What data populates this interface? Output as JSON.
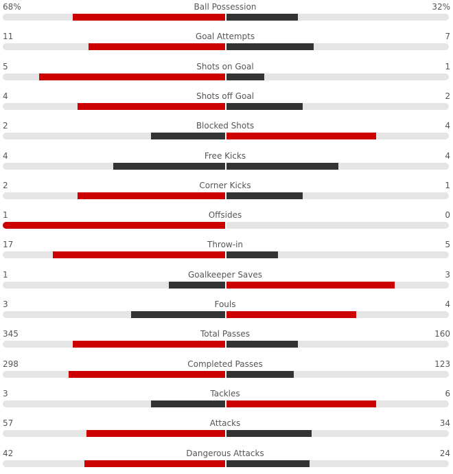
{
  "colors": {
    "leader": "#cc0000",
    "trailer": "#333333",
    "track": "#e5e5e5"
  },
  "stats": [
    {
      "label": "Ball Possession",
      "home": "68%",
      "away": "32%",
      "home_share": 0.68,
      "away_share": 0.32
    },
    {
      "label": "Goal Attempts",
      "home": "11",
      "away": "7",
      "home_share": 0.61,
      "away_share": 0.39
    },
    {
      "label": "Shots on Goal",
      "home": "5",
      "away": "1",
      "home_share": 0.83,
      "away_share": 0.17
    },
    {
      "label": "Shots off Goal",
      "home": "4",
      "away": "2",
      "home_share": 0.66,
      "away_share": 0.34
    },
    {
      "label": "Blocked Shots",
      "home": "2",
      "away": "4",
      "home_share": 0.33,
      "away_share": 0.67
    },
    {
      "label": "Free Kicks",
      "home": "4",
      "away": "4",
      "home_share": 0.5,
      "away_share": 0.5
    },
    {
      "label": "Corner Kicks",
      "home": "2",
      "away": "1",
      "home_share": 0.66,
      "away_share": 0.34
    },
    {
      "label": "Offsides",
      "home": "1",
      "away": "0",
      "home_share": 1.0,
      "away_share": 0.0
    },
    {
      "label": "Throw-in",
      "home": "17",
      "away": "5",
      "home_share": 0.77,
      "away_share": 0.23
    },
    {
      "label": "Goalkeeper Saves",
      "home": "1",
      "away": "3",
      "home_share": 0.25,
      "away_share": 0.75
    },
    {
      "label": "Fouls",
      "home": "3",
      "away": "4",
      "home_share": 0.42,
      "away_share": 0.58
    },
    {
      "label": "Total Passes",
      "home": "345",
      "away": "160",
      "home_share": 0.68,
      "away_share": 0.32
    },
    {
      "label": "Completed Passes",
      "home": "298",
      "away": "123",
      "home_share": 0.7,
      "away_share": 0.3
    },
    {
      "label": "Tackles",
      "home": "3",
      "away": "6",
      "home_share": 0.33,
      "away_share": 0.67
    },
    {
      "label": "Attacks",
      "home": "57",
      "away": "34",
      "home_share": 0.62,
      "away_share": 0.38
    },
    {
      "label": "Dangerous Attacks",
      "home": "42",
      "away": "24",
      "home_share": 0.63,
      "away_share": 0.37
    }
  ]
}
